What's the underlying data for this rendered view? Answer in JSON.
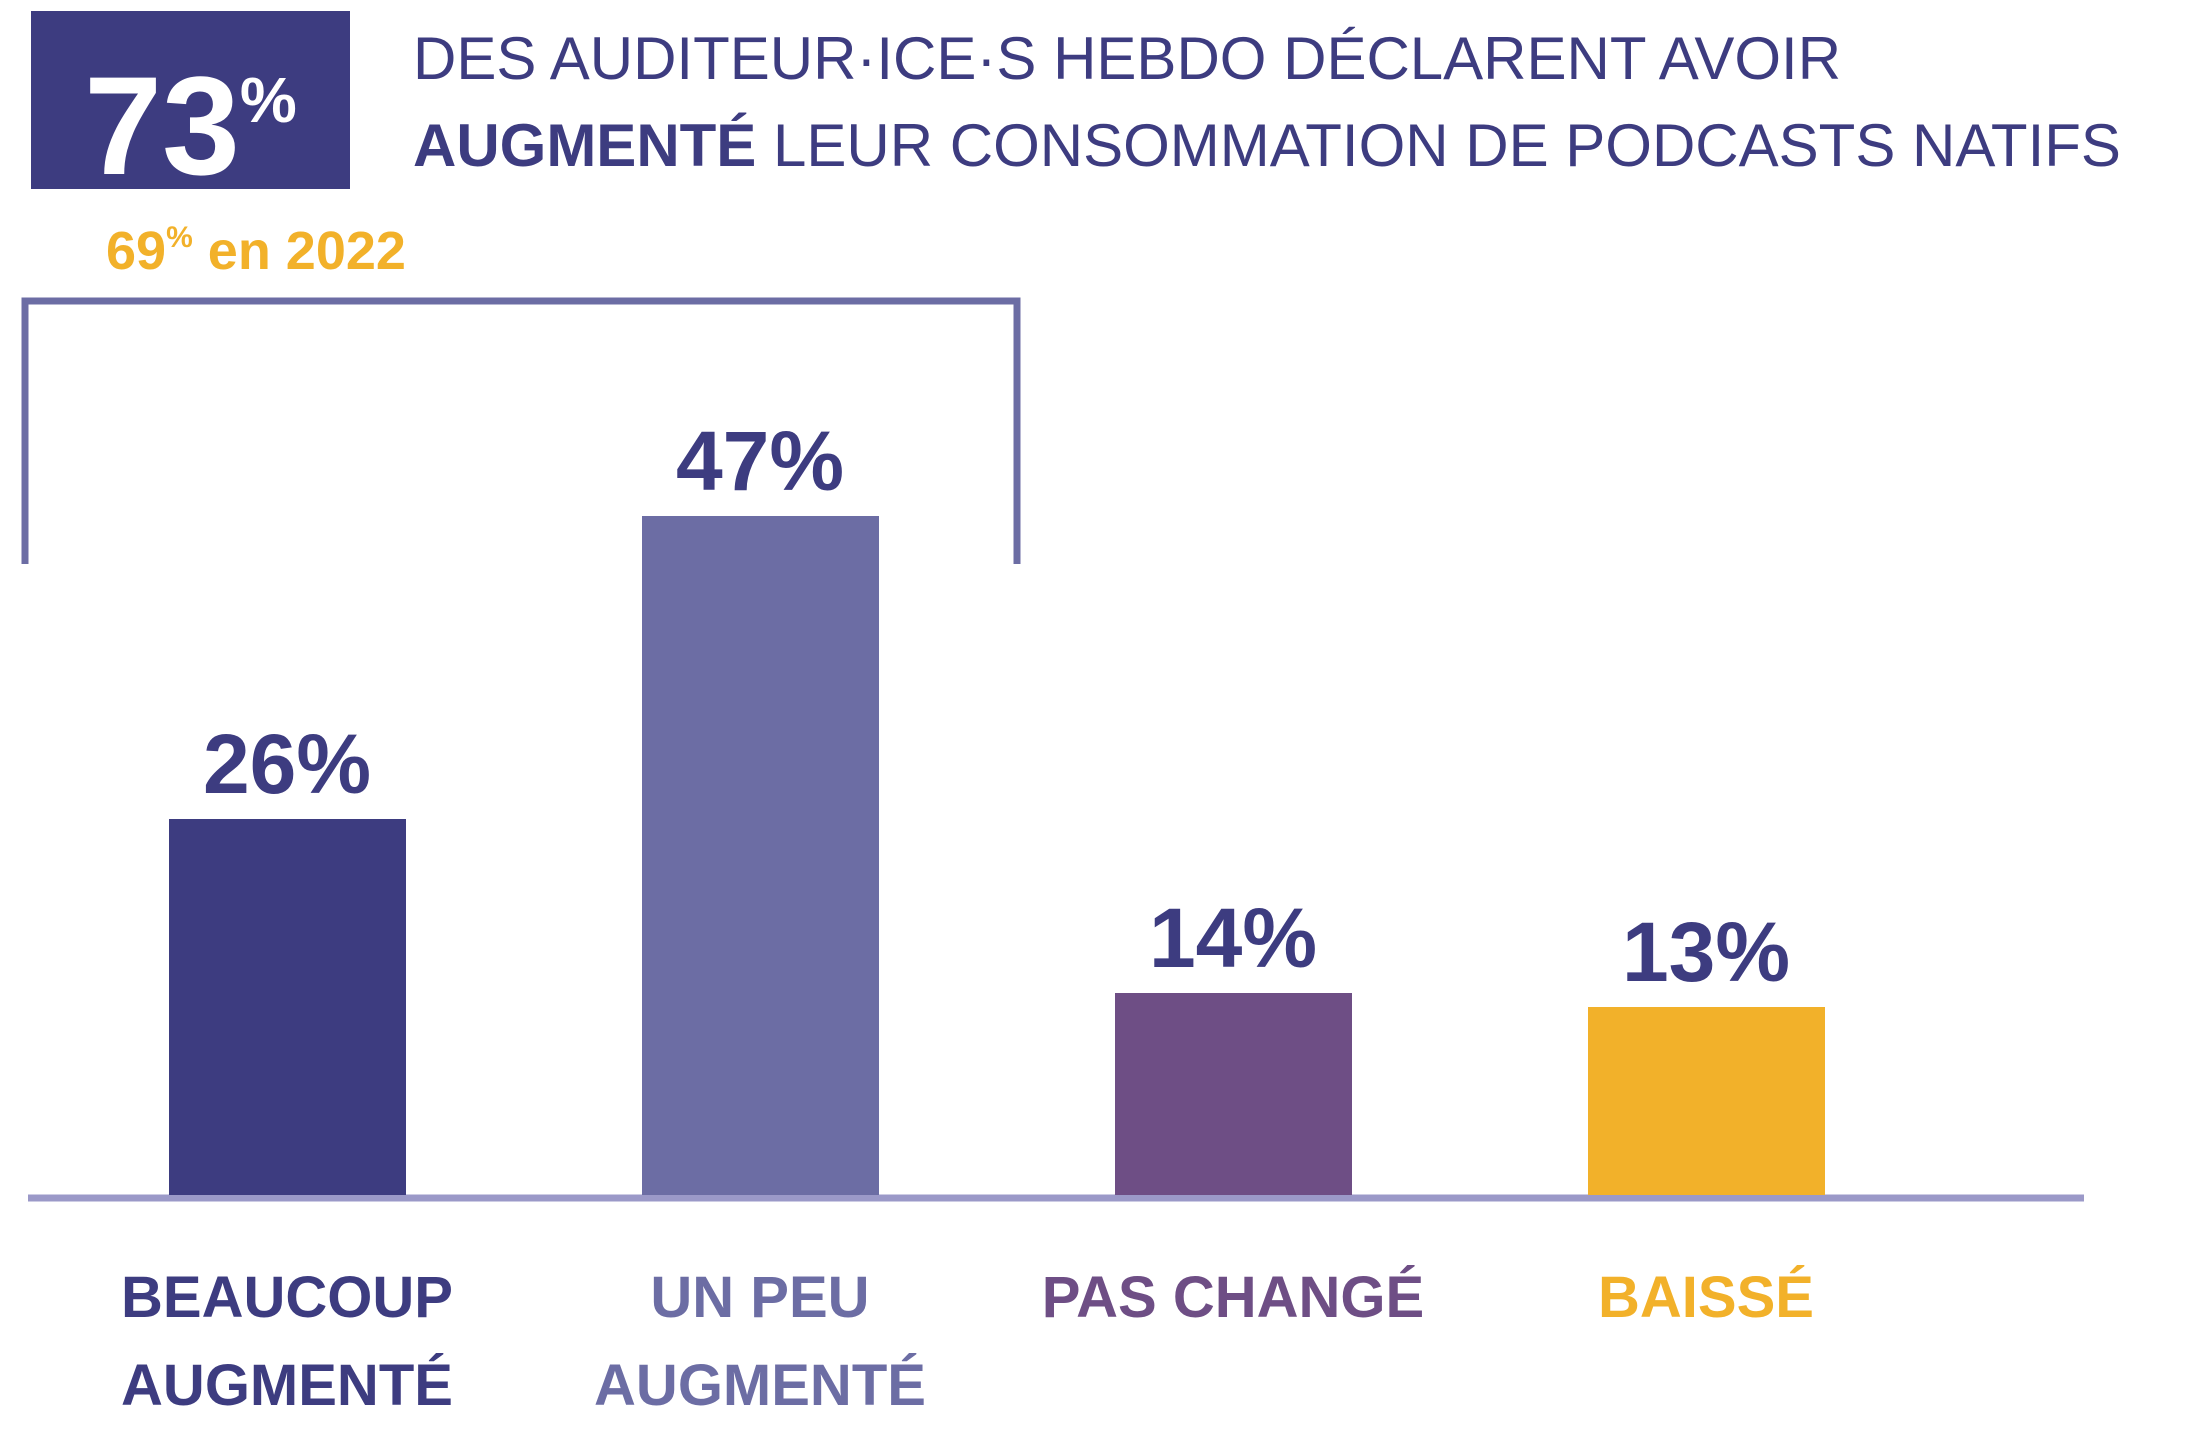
{
  "chart_data": {
    "type": "bar",
    "headline_number": "73",
    "headline_unit": "%",
    "title_line1": "DES AUDITEUR·ICE·S HEBDO DÉCLARENT AVOIR",
    "title_bold": "AUGMENTÉ",
    "title_line2_rest": "LEUR CONSOMMATION DE PODCASTS NATIFS",
    "annotation_number": "69",
    "annotation_unit": "%",
    "annotation_text": "en 2022",
    "categories": [
      "BEAUCOUP AUGMENTÉ",
      "UN PEU AUGMENTÉ",
      "PAS CHANGÉ",
      "BAISSÉ"
    ],
    "values": [
      26,
      47,
      14,
      13
    ],
    "value_labels": [
      "26%",
      "47%",
      "14%",
      "13%"
    ],
    "colors": [
      "#3d3c80",
      "#6c6da4",
      "#6e4e85",
      "#f2b12a"
    ],
    "label_color": "#3d3c80"
  }
}
